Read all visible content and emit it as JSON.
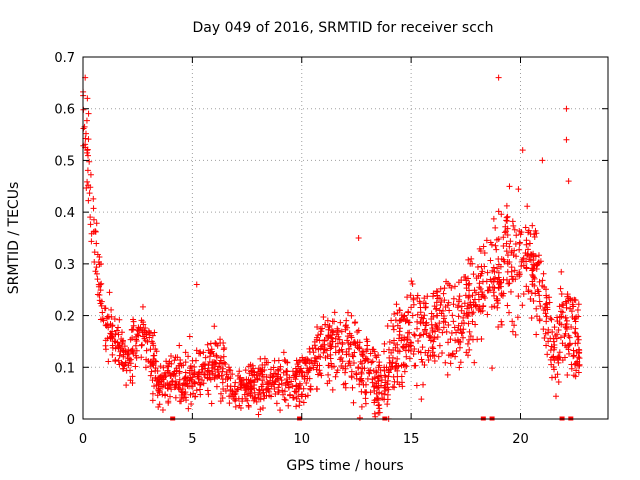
{
  "chart_data": {
    "type": "scatter",
    "title": "Day 049 of 2016, SRMTID for receiver scch",
    "xlabel": "GPS time / hours",
    "ylabel": "SRMTID / TECUs",
    "xlim": [
      0,
      24
    ],
    "ylim": [
      0,
      0.7
    ],
    "xticks": [
      0,
      5,
      10,
      15,
      20
    ],
    "xtick_labels": [
      "0",
      "5",
      "10",
      "15",
      "20"
    ],
    "yticks": [
      0,
      0.1,
      0.2,
      0.3,
      0.4,
      0.5,
      0.6,
      0.7
    ],
    "ytick_labels": [
      "0",
      "0.1",
      "0.2",
      "0.3",
      "0.4",
      "0.5",
      "0.6",
      "0.7"
    ],
    "grid": true,
    "marker": "+",
    "color": "#ff0000",
    "point_count": 1800,
    "trend": [
      {
        "x": 0.0,
        "y": 0.58,
        "spread": 0.06
      },
      {
        "x": 0.3,
        "y": 0.45,
        "spread": 0.08
      },
      {
        "x": 0.6,
        "y": 0.34,
        "spread": 0.09
      },
      {
        "x": 0.9,
        "y": 0.2,
        "spread": 0.05
      },
      {
        "x": 1.5,
        "y": 0.15,
        "spread": 0.05
      },
      {
        "x": 2.0,
        "y": 0.11,
        "spread": 0.05
      },
      {
        "x": 2.7,
        "y": 0.17,
        "spread": 0.05
      },
      {
        "x": 3.5,
        "y": 0.07,
        "spread": 0.05
      },
      {
        "x": 5.0,
        "y": 0.08,
        "spread": 0.05
      },
      {
        "x": 6.0,
        "y": 0.11,
        "spread": 0.05
      },
      {
        "x": 7.0,
        "y": 0.05,
        "spread": 0.04
      },
      {
        "x": 8.5,
        "y": 0.08,
        "spread": 0.04
      },
      {
        "x": 10.0,
        "y": 0.07,
        "spread": 0.04
      },
      {
        "x": 11.0,
        "y": 0.14,
        "spread": 0.06
      },
      {
        "x": 12.5,
        "y": 0.12,
        "spread": 0.08
      },
      {
        "x": 13.5,
        "y": 0.06,
        "spread": 0.06
      },
      {
        "x": 14.5,
        "y": 0.14,
        "spread": 0.08
      },
      {
        "x": 16.0,
        "y": 0.18,
        "spread": 0.08
      },
      {
        "x": 17.5,
        "y": 0.2,
        "spread": 0.09
      },
      {
        "x": 18.5,
        "y": 0.27,
        "spread": 0.1
      },
      {
        "x": 19.5,
        "y": 0.3,
        "spread": 0.12
      },
      {
        "x": 20.5,
        "y": 0.3,
        "spread": 0.08
      },
      {
        "x": 21.0,
        "y": 0.24,
        "spread": 0.08
      },
      {
        "x": 21.5,
        "y": 0.12,
        "spread": 0.06
      },
      {
        "x": 22.0,
        "y": 0.2,
        "spread": 0.1
      },
      {
        "x": 22.7,
        "y": 0.12,
        "spread": 0.07
      }
    ],
    "notable_points": [
      {
        "x": 0.1,
        "y": 0.66
      },
      {
        "x": 0.2,
        "y": 0.62
      },
      {
        "x": 5.2,
        "y": 0.26
      },
      {
        "x": 12.6,
        "y": 0.35
      },
      {
        "x": 19.0,
        "y": 0.66
      },
      {
        "x": 20.1,
        "y": 0.52
      },
      {
        "x": 21.0,
        "y": 0.5
      },
      {
        "x": 22.1,
        "y": 0.6
      },
      {
        "x": 22.1,
        "y": 0.54
      },
      {
        "x": 22.2,
        "y": 0.46
      }
    ],
    "zero_points_x": [
      4.1,
      9.9,
      13.8,
      18.3,
      18.7,
      21.9,
      22.3
    ]
  }
}
